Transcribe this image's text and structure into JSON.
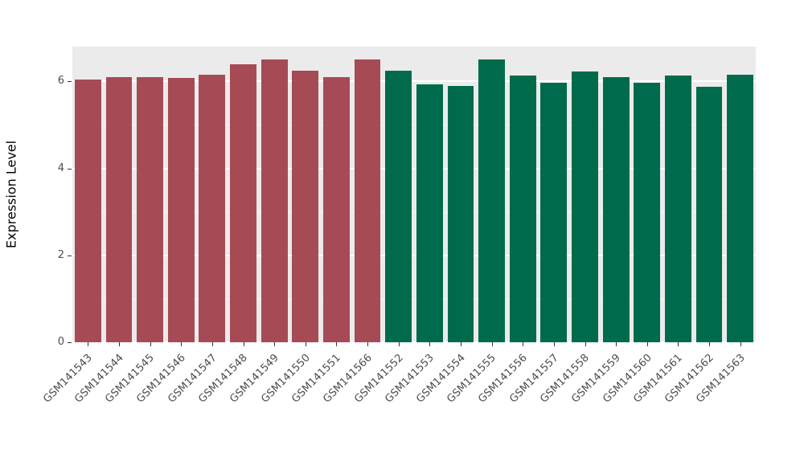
{
  "chart_data": {
    "type": "bar",
    "title": "",
    "xlabel": "",
    "ylabel": "Expression Level",
    "ylim": [
      0,
      6.8
    ],
    "yticks": [
      0,
      2,
      4,
      6
    ],
    "yticks_minor": [
      1,
      3,
      5
    ],
    "grid": true,
    "legend_position": "none",
    "panel_background": "#EBEBEB",
    "gridline_major_color": "#FFFFFF",
    "gridline_minor_color": "#F6F6F6",
    "categories": [
      "GSM141543",
      "GSM141544",
      "GSM141545",
      "GSM141546",
      "GSM141547",
      "GSM141548",
      "GSM141549",
      "GSM141550",
      "GSM141551",
      "GSM141566",
      "GSM141552",
      "GSM141553",
      "GSM141554",
      "GSM141555",
      "GSM141556",
      "GSM141557",
      "GSM141558",
      "GSM141559",
      "GSM141560",
      "GSM141561",
      "GSM141562",
      "GSM141563"
    ],
    "values": [
      6.05,
      6.1,
      6.1,
      6.08,
      6.15,
      6.4,
      6.5,
      6.25,
      6.1,
      6.5,
      6.25,
      5.93,
      5.9,
      6.5,
      6.13,
      5.97,
      6.22,
      6.1,
      5.97,
      6.13,
      5.87,
      6.15
    ],
    "groups": [
      "group1",
      "group1",
      "group1",
      "group1",
      "group1",
      "group1",
      "group1",
      "group1",
      "group1",
      "group1",
      "group2",
      "group2",
      "group2",
      "group2",
      "group2",
      "group2",
      "group2",
      "group2",
      "group2",
      "group2",
      "group2",
      "group2"
    ],
    "group_colors": {
      "group1": "#A64B55",
      "group2": "#006B4C"
    }
  }
}
